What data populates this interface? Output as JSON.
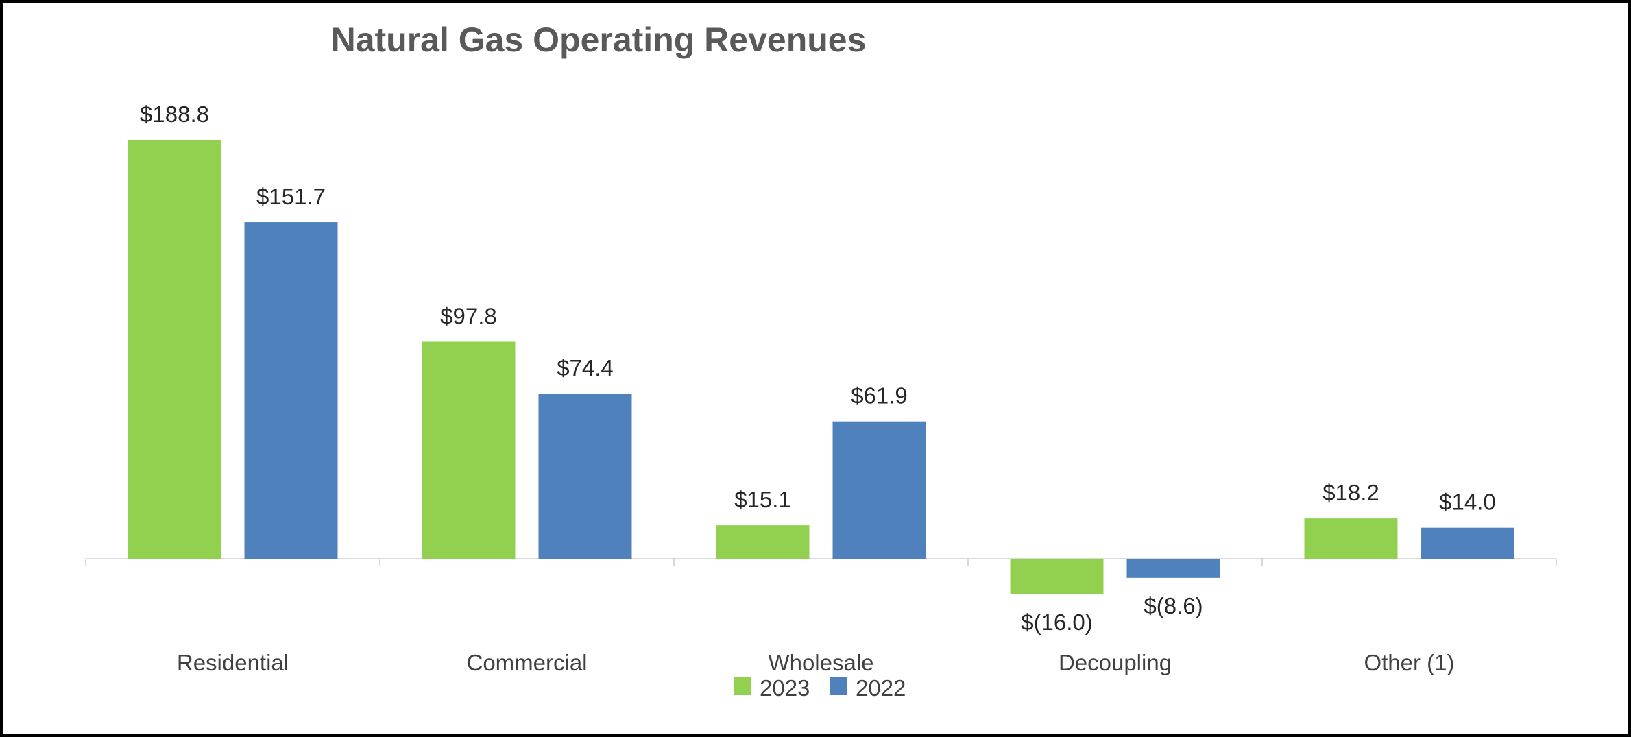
{
  "chart_data": {
    "type": "bar",
    "title": "Natural Gas Operating Revenues",
    "categories": [
      "Residential",
      "Commercial",
      "Wholesale",
      "Decoupling",
      "Other (1)"
    ],
    "series": [
      {
        "name": "2023",
        "color": "#92D050",
        "values": [
          188.8,
          97.8,
          15.1,
          -16.0,
          18.2
        ],
        "labels": [
          "$188.8",
          "$97.8",
          "$15.1",
          "$(16.0)",
          "$18.2"
        ]
      },
      {
        "name": "2022",
        "color": "#4F81BD",
        "values": [
          151.7,
          74.4,
          61.9,
          -8.6,
          14.0
        ],
        "labels": [
          "$151.7",
          "$74.4",
          "$61.9",
          "$(8.6)",
          "$14.0"
        ]
      }
    ],
    "xlabel": "",
    "ylabel": "",
    "ylim": [
      -30,
      210
    ],
    "grid": false,
    "legend": "bottom-center"
  }
}
